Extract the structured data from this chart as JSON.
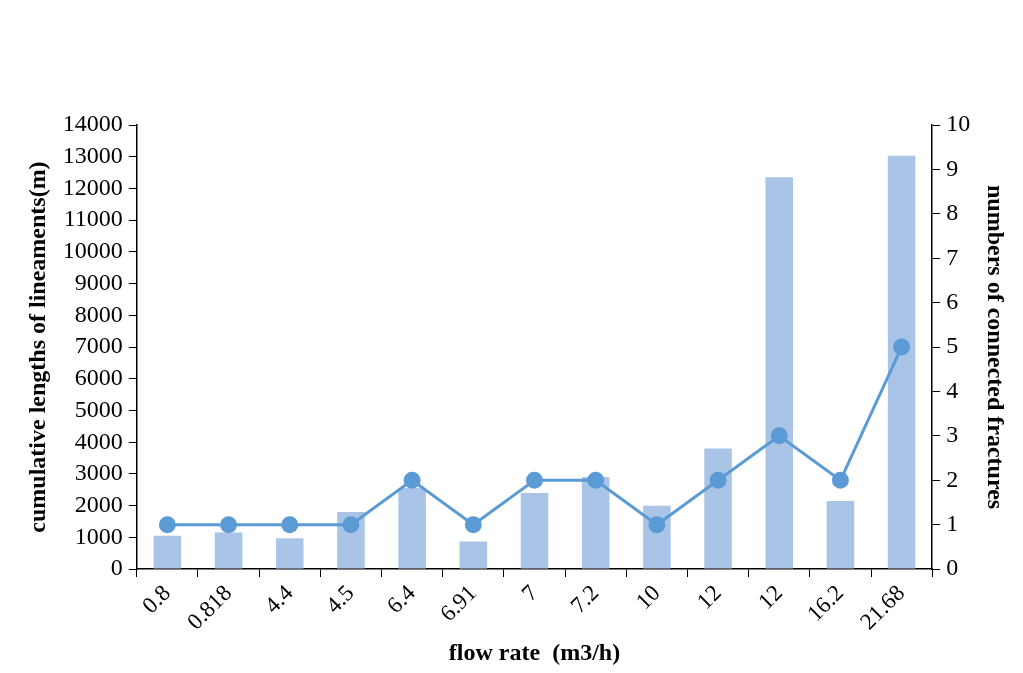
{
  "chart_data": {
    "type": "bar",
    "xlabel": "flow rate  (m3/h)",
    "ylabel": "cumulative lengths of lineaments(m)",
    "y2label": "numbers of connected fractures",
    "categories": [
      "0.8",
      "0.818",
      "4.4",
      "4.5",
      "6.4",
      "6.91",
      "7",
      "7.2",
      "10",
      "12",
      "12",
      "16.2",
      "21.68"
    ],
    "series": [
      {
        "color": "#a9c4e6",
        "values": [
          1050,
          1150,
          970,
          1800,
          2560,
          870,
          2400,
          2900,
          2000,
          3800,
          12350,
          2150,
          13030
        ]
      },
      {
        "type": "line",
        "axis": "y2",
        "color": "#5b9bd5",
        "values": [
          1,
          1,
          1,
          1,
          2,
          1,
          2,
          2,
          1,
          2,
          3,
          2,
          5
        ]
      }
    ],
    "ylim": [
      0,
      14000
    ],
    "yticks": [
      0,
      1000,
      2000,
      3000,
      4000,
      5000,
      6000,
      7000,
      8000,
      9000,
      10000,
      11000,
      12000,
      13000,
      14000
    ],
    "y2lim": [
      0,
      10
    ],
    "y2ticks": [
      0,
      1,
      2,
      3,
      4,
      5,
      6,
      7,
      8,
      9,
      10
    ],
    "grid": false,
    "legend": false,
    "marker": "circle",
    "line_style": "solid"
  }
}
